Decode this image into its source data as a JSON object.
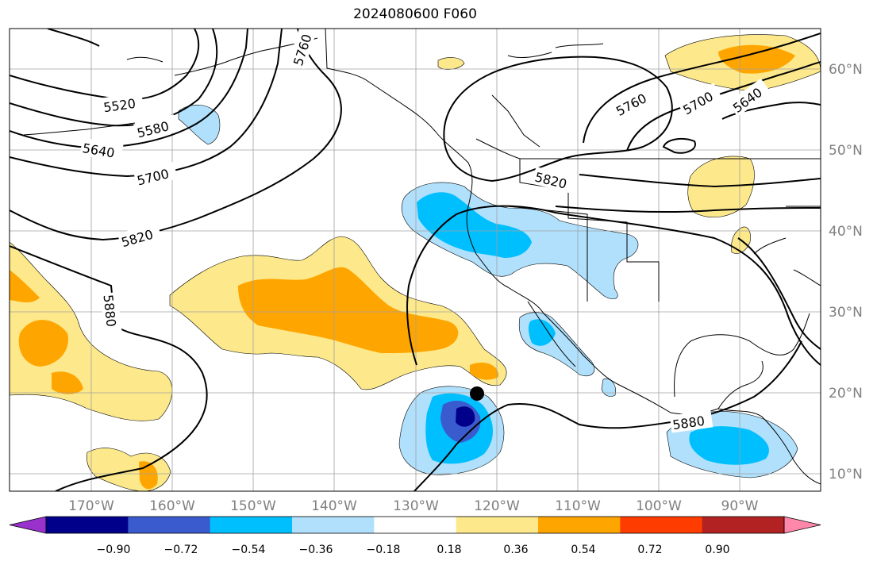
{
  "title": "2024080600 F060",
  "lat_labels": [
    "60°N",
    "50°N",
    "40°N",
    "30°N",
    "20°N",
    "10°N"
  ],
  "lon_labels": [
    "170°W",
    "160°W",
    "150°W",
    "140°W",
    "130°W",
    "120°W",
    "110°W",
    "100°W",
    "90°W"
  ],
  "contour_labels": [
    "5520",
    "5580",
    "5640",
    "5700",
    "5760",
    "5820",
    "5880",
    "5760",
    "5700",
    "5640",
    "5820",
    "5880"
  ],
  "colorbar": {
    "tick_labels": [
      "−0.90",
      "−0.72",
      "−0.54",
      "−0.36",
      "−0.18",
      "0.18",
      "0.36",
      "0.54",
      "0.72",
      "0.90"
    ],
    "colors": [
      "#9932cc",
      "#00008b",
      "#3a5bcd",
      "#00bfff",
      "#b0e0fc",
      "#ffffff",
      "#fde98b",
      "#ffa500",
      "#ff3c00",
      "#b22222",
      "#ff87aa"
    ]
  },
  "colors": {
    "land_outline": "#000000",
    "gridline": "#a0a0a0",
    "contour": "#000000",
    "marker": "#000000"
  }
}
